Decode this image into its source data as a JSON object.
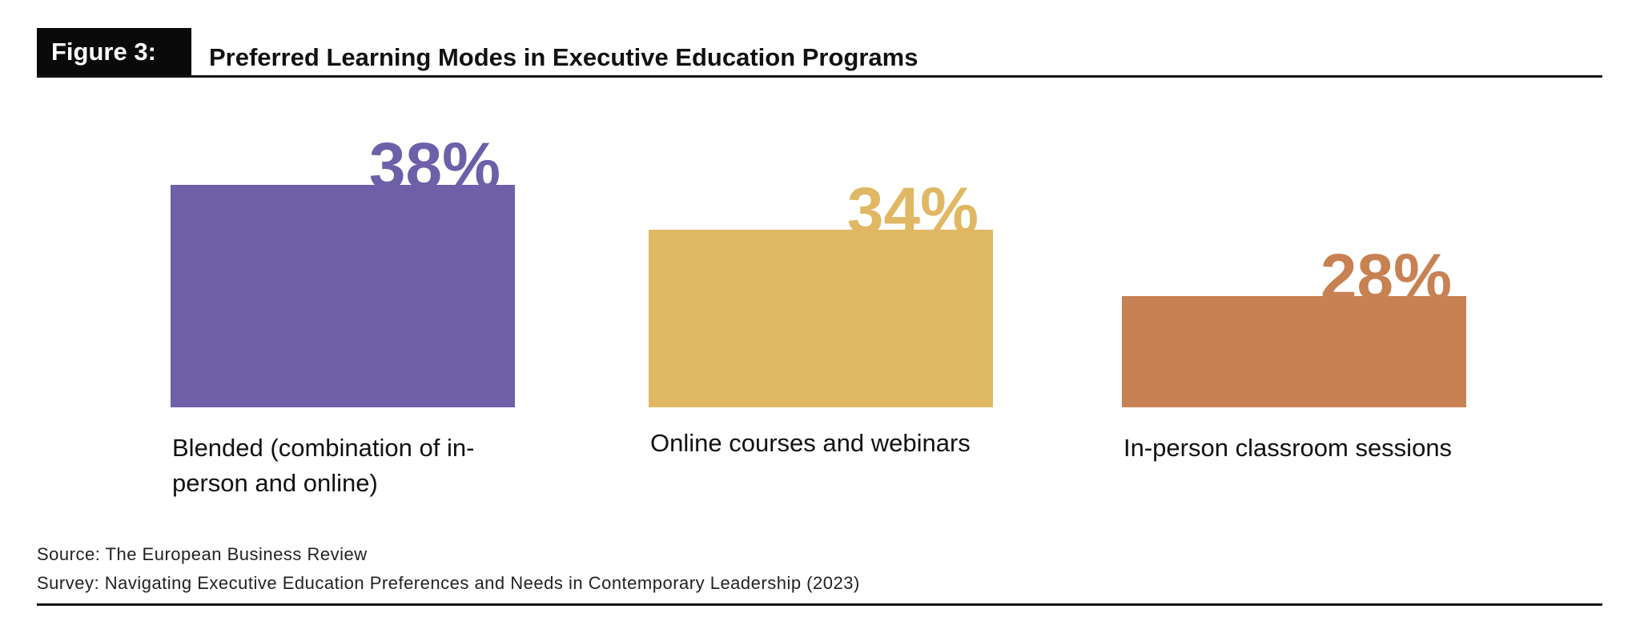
{
  "figure_tag": "Figure 3:",
  "chart_data": {
    "type": "bar",
    "title": "Preferred Learning Modes in Executive Education Programs",
    "categories": [
      "Blended (combination of in-person and online)",
      "Online courses and webinars",
      "In-person classroom sessions"
    ],
    "values": [
      38,
      34,
      28
    ],
    "value_labels": [
      "38%",
      "34%",
      "28%"
    ],
    "colors": [
      "#6d5fa8",
      "#e0b864",
      "#c78152"
    ],
    "xlabel": "",
    "ylabel": "",
    "grid": false,
    "legend": "none"
  },
  "source": "Source: The European Business Review",
  "survey": "Survey: Navigating Executive Education Preferences and Needs in Contemporary Leadership (2023)"
}
